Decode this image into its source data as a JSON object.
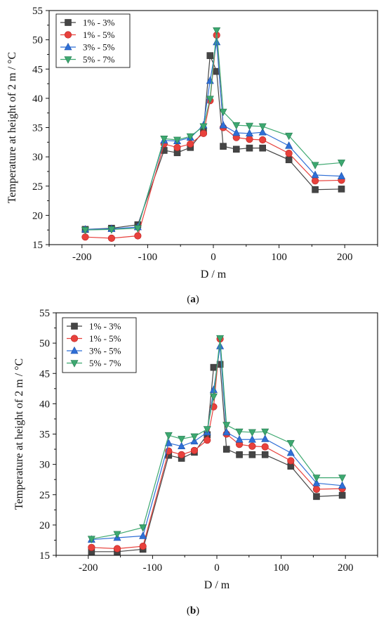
{
  "figure": {
    "captions": [
      "(a)",
      "(b)"
    ],
    "caption_parts": [
      {
        "open": "(",
        "letter": "a",
        "close": ")"
      },
      {
        "open": "(",
        "letter": "b",
        "close": ")"
      }
    ]
  },
  "chart_data": [
    {
      "type": "line",
      "panel": "a",
      "xlabel": "D / m",
      "ylabel": "Temperature at height of 2 m / °C",
      "xlim": [
        -250,
        250
      ],
      "ylim": [
        15,
        55
      ],
      "xticks": [
        -200,
        -100,
        0,
        100,
        200
      ],
      "yticks": [
        15,
        20,
        25,
        30,
        35,
        40,
        45,
        50,
        55
      ],
      "legend_position": "top-left",
      "grid": false,
      "x": [
        -195,
        -155,
        -115,
        -75,
        -55,
        -35,
        -15,
        -5,
        5,
        15,
        35,
        55,
        75,
        115,
        155,
        195
      ],
      "series": [
        {
          "name": "1% - 3%",
          "color": "#454545",
          "marker": "square",
          "values": [
            17.6,
            17.8,
            18.4,
            31.1,
            30.7,
            31.6,
            34.4,
            47.3,
            44.6,
            31.8,
            31.3,
            31.5,
            31.5,
            29.5,
            24.4,
            24.5
          ]
        },
        {
          "name": "1% - 5%",
          "color": "#e8413c",
          "marker": "circle",
          "values": [
            16.3,
            16.1,
            16.5,
            32.2,
            31.6,
            32.2,
            34.0,
            39.6,
            50.8,
            35.0,
            33.3,
            33.0,
            32.9,
            30.6,
            25.9,
            26.0
          ]
        },
        {
          "name": "3% - 5%",
          "color": "#2f6fd6",
          "marker": "triangle-up",
          "values": [
            17.6,
            17.7,
            18.0,
            32.8,
            32.7,
            33.3,
            35.4,
            43.0,
            49.6,
            35.4,
            34.1,
            34.0,
            34.2,
            31.9,
            26.9,
            26.7
          ]
        },
        {
          "name": "5% - 7%",
          "color": "#3da870",
          "marker": "triangle-down",
          "values": [
            17.5,
            17.6,
            17.8,
            33.1,
            32.9,
            33.5,
            35.2,
            39.9,
            51.6,
            37.7,
            35.4,
            35.3,
            35.2,
            33.6,
            28.6,
            29.0
          ]
        }
      ]
    },
    {
      "type": "line",
      "panel": "b",
      "xlabel": "D / m",
      "ylabel": "Temperature at height of 2 m / °C",
      "xlim": [
        -250,
        250
      ],
      "ylim": [
        15,
        55
      ],
      "xticks": [
        -200,
        -100,
        0,
        100,
        200
      ],
      "yticks": [
        15,
        20,
        25,
        30,
        35,
        40,
        45,
        50,
        55
      ],
      "legend_position": "top-left",
      "grid": false,
      "x": [
        -195,
        -155,
        -115,
        -75,
        -55,
        -35,
        -15,
        -5,
        5,
        15,
        35,
        55,
        75,
        115,
        155,
        195
      ],
      "series": [
        {
          "name": "1% - 3%",
          "color": "#454545",
          "marker": "square",
          "values": [
            15.6,
            15.6,
            16.0,
            31.5,
            31.0,
            32.0,
            34.9,
            46.0,
            46.5,
            32.5,
            31.6,
            31.6,
            31.6,
            29.7,
            24.7,
            24.9
          ]
        },
        {
          "name": "1% - 5%",
          "color": "#e8413c",
          "marker": "circle",
          "values": [
            16.3,
            16.1,
            16.5,
            32.2,
            31.6,
            32.3,
            34.0,
            39.5,
            50.7,
            35.0,
            33.3,
            33.0,
            32.9,
            30.6,
            25.9,
            26.0
          ]
        },
        {
          "name": "3% - 5%",
          "color": "#2f6fd6",
          "marker": "triangle-up",
          "values": [
            17.6,
            17.9,
            18.2,
            33.5,
            33.0,
            33.8,
            35.3,
            42.3,
            49.5,
            35.3,
            34.1,
            34.1,
            34.2,
            31.9,
            26.9,
            26.5
          ]
        },
        {
          "name": "5% - 7%",
          "color": "#3da870",
          "marker": "triangle-down",
          "values": [
            17.7,
            18.5,
            19.6,
            34.8,
            34.2,
            34.6,
            35.8,
            41.2,
            50.8,
            36.5,
            35.4,
            35.3,
            35.4,
            33.5,
            27.8,
            27.8
          ]
        }
      ]
    }
  ]
}
